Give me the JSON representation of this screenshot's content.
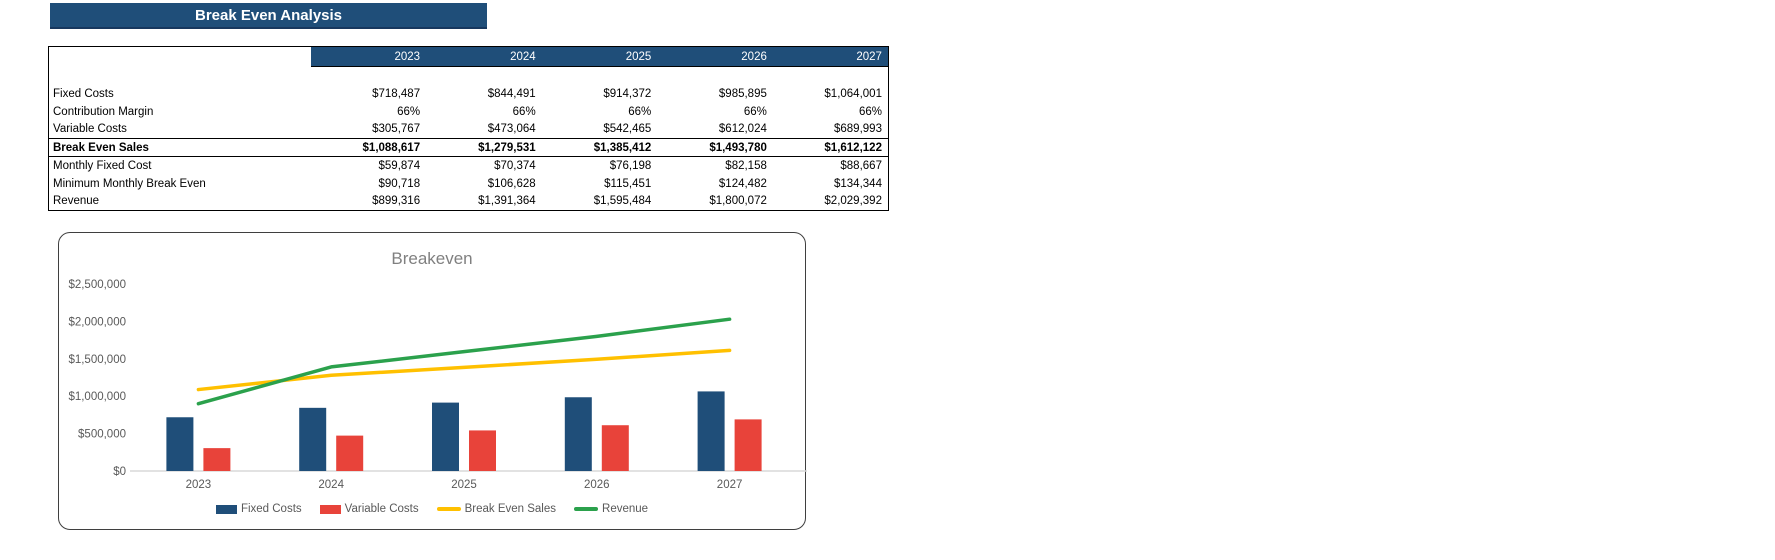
{
  "title_bar": {
    "label": "Break Even Analysis",
    "bg": "#1F4E79"
  },
  "table": {
    "header_bg": "#1F4E79",
    "years": [
      "2023",
      "2024",
      "2025",
      "2026",
      "2027"
    ],
    "rows": [
      {
        "label": "Fixed Costs",
        "bold": false,
        "values": [
          "$718,487",
          "$844,491",
          "$914,372",
          "$985,895",
          "$1,064,001"
        ]
      },
      {
        "label": "Contribution Margin",
        "bold": false,
        "values": [
          "66%",
          "66%",
          "66%",
          "66%",
          "66%"
        ]
      },
      {
        "label": "Variable Costs",
        "bold": false,
        "values": [
          "$305,767",
          "$473,064",
          "$542,465",
          "$612,024",
          "$689,993"
        ]
      },
      {
        "label": "Break Even Sales",
        "bold": true,
        "values": [
          "$1,088,617",
          "$1,279,531",
          "$1,385,412",
          "$1,493,780",
          "$1,612,122"
        ]
      },
      {
        "label": "Monthly Fixed Cost",
        "bold": false,
        "values": [
          "$59,874",
          "$70,374",
          "$76,198",
          "$82,158",
          "$88,667"
        ]
      },
      {
        "label": "Minimum Monthly Break Even",
        "bold": false,
        "values": [
          "$90,718",
          "$106,628",
          "$115,451",
          "$124,482",
          "$134,344"
        ]
      },
      {
        "label": "Revenue",
        "bold": false,
        "values": [
          "$899,316",
          "$1,391,364",
          "$1,595,484",
          "$1,800,072",
          "$2,029,392"
        ]
      }
    ]
  },
  "chart_data": {
    "type": "bar",
    "subtype": "bar+line combo",
    "title": "Breakeven",
    "categories": [
      "2023",
      "2024",
      "2025",
      "2026",
      "2027"
    ],
    "series": [
      {
        "name": "Fixed Costs",
        "type": "bar",
        "color": "#1F4E79",
        "values": [
          718487,
          844491,
          914372,
          985895,
          1064001
        ]
      },
      {
        "name": "Variable Costs",
        "type": "bar",
        "color": "#E8433A",
        "values": [
          305767,
          473064,
          542465,
          612024,
          689993
        ]
      },
      {
        "name": "Break Even Sales",
        "type": "line",
        "color": "#FFC000",
        "values": [
          1088617,
          1279531,
          1385412,
          1493780,
          1612122
        ]
      },
      {
        "name": "Revenue",
        "type": "line",
        "color": "#2BA14C",
        "values": [
          899316,
          1391364,
          1595484,
          1800072,
          2029392
        ]
      }
    ],
    "ylabel": "",
    "xlabel": "",
    "ylim": [
      0,
      2500000
    ],
    "y_ticks": [
      "$0",
      "$500,000",
      "$1,000,000",
      "$1,500,000",
      "$2,000,000",
      "$2,500,000"
    ],
    "grid": false,
    "legend_position": "bottom",
    "title_color": "#808080",
    "axis_text_color": "#595959",
    "axis_line_color": "#D9D9D9"
  }
}
